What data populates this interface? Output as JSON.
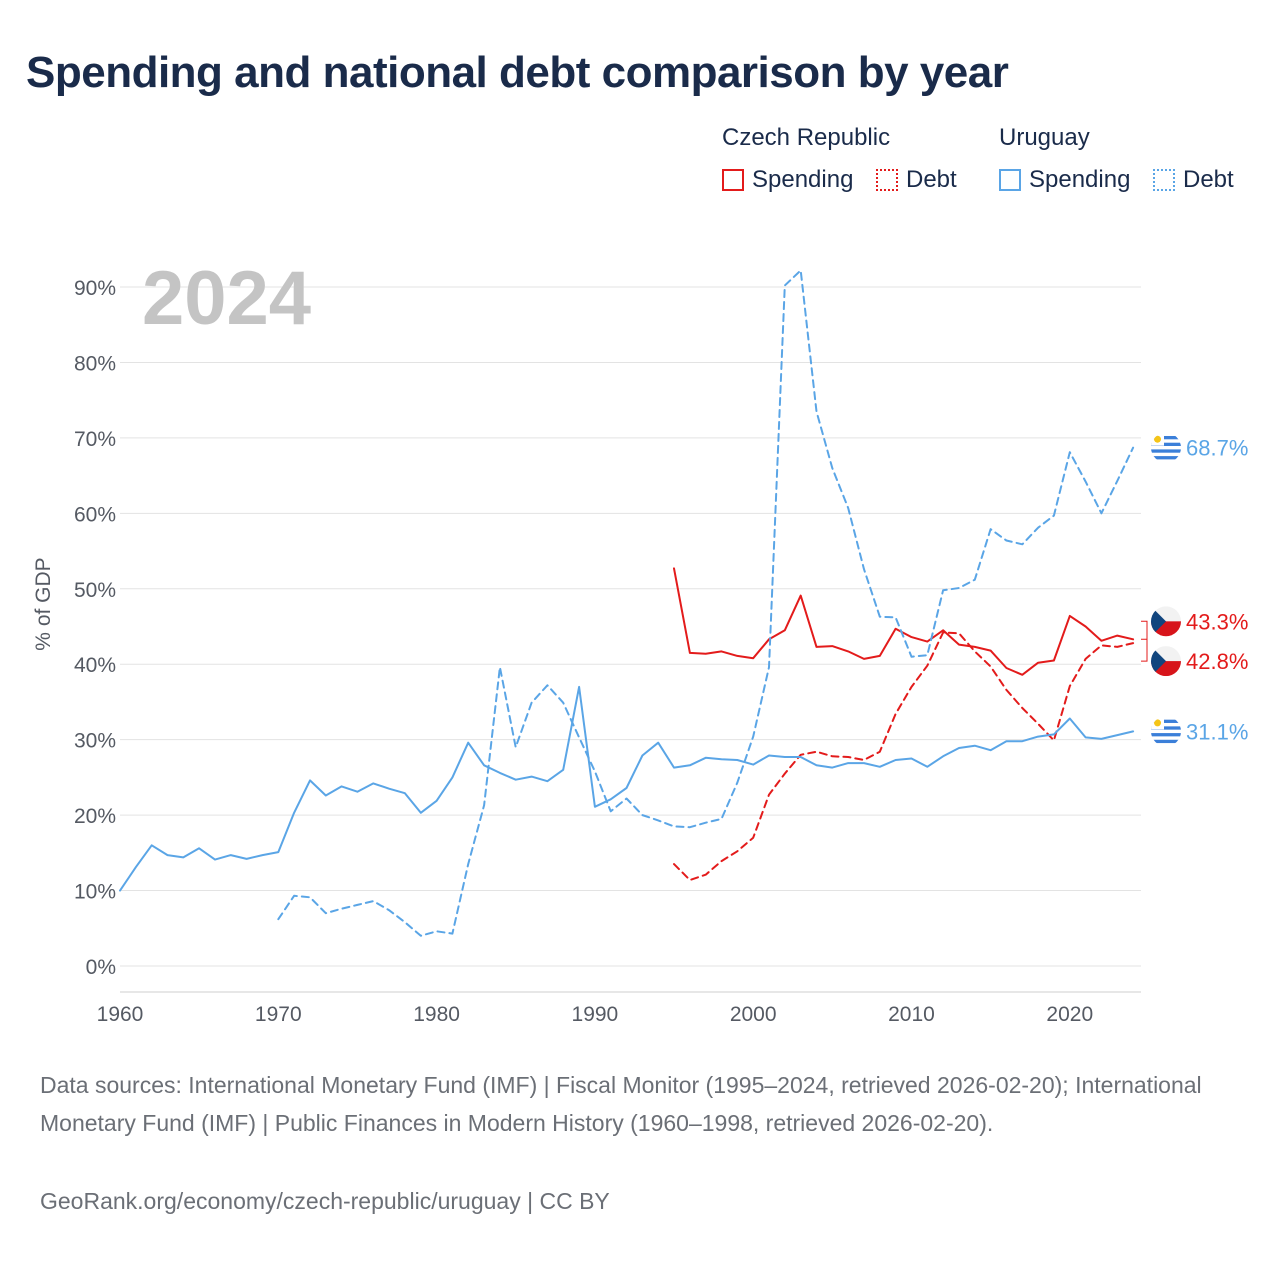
{
  "title": "Spending and national debt comparison by year",
  "legend": {
    "groups": [
      {
        "country": "Czech Republic",
        "color": "#e31b1b",
        "items": [
          {
            "label": "Spending",
            "style": "solid"
          },
          {
            "label": "Debt",
            "style": "dotted"
          }
        ]
      },
      {
        "country": "Uruguay",
        "color": "#5aa5e6",
        "items": [
          {
            "label": "Spending",
            "style": "solid"
          },
          {
            "label": "Debt",
            "style": "dotted"
          }
        ]
      }
    ]
  },
  "footer": {
    "sources": "Data sources: International Monetary Fund (IMF) | Fiscal Monitor (1995–2024, retrieved 2026-02-20); International Monetary Fund (IMF) | Public Finances in Modern History (1960–1998, retrieved 2026-02-20).",
    "attribution": "GeoRank.org/economy/czech-republic/uruguay | CC BY"
  },
  "chart_data": {
    "type": "line",
    "year_label": "2024",
    "ylabel": "% of GDP",
    "xlim": [
      1960,
      2024.5
    ],
    "ylim": [
      0,
      90
    ],
    "x_ticks": [
      1960,
      1970,
      1980,
      1990,
      2000,
      2010,
      2020
    ],
    "y_ticks": [
      0,
      10,
      20,
      30,
      40,
      50,
      60,
      70,
      80,
      90
    ],
    "y_tick_labels": [
      "0%",
      "10%",
      "20%",
      "30%",
      "40%",
      "50%",
      "60%",
      "70%",
      "80%",
      "90%"
    ],
    "grid": true,
    "series": [
      {
        "name": "Czech Republic Spending",
        "country": "Czech Republic",
        "measure": "Spending",
        "color": "#e31b1b",
        "dash": "solid",
        "end_label": "43.3%",
        "x": [
          1995,
          1996,
          1997,
          1998,
          1999,
          2000,
          2001,
          2002,
          2003,
          2004,
          2005,
          2006,
          2007,
          2008,
          2009,
          2010,
          2011,
          2012,
          2013,
          2014,
          2015,
          2016,
          2017,
          2018,
          2019,
          2020,
          2021,
          2022,
          2023,
          2024
        ],
        "values": [
          52.7,
          41.5,
          41.4,
          41.7,
          41.1,
          40.8,
          43.3,
          44.5,
          49.1,
          42.3,
          42.4,
          41.7,
          40.7,
          41.1,
          44.7,
          43.6,
          43.0,
          44.5,
          42.6,
          42.3,
          41.8,
          39.5,
          38.6,
          40.2,
          40.5,
          46.4,
          45.0,
          43.1,
          43.8,
          43.3
        ]
      },
      {
        "name": "Czech Republic Debt",
        "country": "Czech Republic",
        "measure": "Debt",
        "color": "#e31b1b",
        "dash": "dashed",
        "end_label": "42.8%",
        "x": [
          1995,
          1996,
          1997,
          1998,
          1999,
          2000,
          2001,
          2002,
          2003,
          2004,
          2005,
          2006,
          2007,
          2008,
          2009,
          2010,
          2011,
          2012,
          2013,
          2014,
          2015,
          2016,
          2017,
          2018,
          2019,
          2020,
          2021,
          2022,
          2023,
          2024
        ],
        "values": [
          13.5,
          11.4,
          12.1,
          13.9,
          15.2,
          17.0,
          22.7,
          25.5,
          28.0,
          28.4,
          27.8,
          27.7,
          27.3,
          28.4,
          33.4,
          37.0,
          39.8,
          44.2,
          44.1,
          41.7,
          39.7,
          36.6,
          34.2,
          32.1,
          29.9,
          37.1,
          40.7,
          42.5,
          42.3,
          42.8
        ]
      },
      {
        "name": "Uruguay Spending",
        "country": "Uruguay",
        "measure": "Spending",
        "color": "#5aa5e6",
        "dash": "solid",
        "end_label": "31.1%",
        "x": [
          1960,
          1961,
          1962,
          1963,
          1964,
          1965,
          1966,
          1967,
          1968,
          1969,
          1970,
          1971,
          1972,
          1973,
          1974,
          1975,
          1976,
          1977,
          1978,
          1979,
          1980,
          1981,
          1982,
          1983,
          1984,
          1985,
          1986,
          1987,
          1988,
          1989,
          1990,
          1991,
          1992,
          1993,
          1994,
          1995,
          1996,
          1997,
          1998,
          1999,
          2000,
          2001,
          2002,
          2003,
          2004,
          2005,
          2006,
          2007,
          2008,
          2009,
          2010,
          2011,
          2012,
          2013,
          2014,
          2015,
          2016,
          2017,
          2018,
          2019,
          2020,
          2021,
          2022,
          2023,
          2024
        ],
        "values": [
          10.0,
          13.1,
          16.0,
          14.7,
          14.4,
          15.6,
          14.1,
          14.7,
          14.2,
          14.7,
          15.1,
          20.3,
          24.6,
          22.6,
          23.8,
          23.1,
          24.2,
          23.5,
          22.9,
          20.3,
          21.9,
          25.0,
          29.6,
          26.6,
          25.6,
          24.7,
          25.1,
          24.5,
          26.0,
          37.0,
          21.1,
          22.1,
          23.6,
          27.9,
          29.6,
          26.3,
          26.6,
          27.6,
          27.4,
          27.3,
          26.7,
          27.9,
          27.7,
          27.7,
          26.6,
          26.3,
          26.9,
          26.9,
          26.4,
          27.3,
          27.5,
          26.4,
          27.8,
          28.9,
          29.2,
          28.6,
          29.8,
          29.8,
          30.4,
          30.7,
          32.8,
          30.3,
          30.1,
          30.6,
          31.1
        ]
      },
      {
        "name": "Uruguay Debt",
        "country": "Uruguay",
        "measure": "Debt",
        "color": "#5aa5e6",
        "dash": "dashed",
        "end_label": "68.7%",
        "x": [
          1970,
          1971,
          1972,
          1973,
          1974,
          1975,
          1976,
          1977,
          1978,
          1979,
          1980,
          1981,
          1982,
          1983,
          1984,
          1985,
          1986,
          1987,
          1988,
          1989,
          1990,
          1991,
          1992,
          1993,
          1994,
          1995,
          1996,
          1997,
          1998,
          1999,
          2000,
          2001,
          2002,
          2003,
          2004,
          2005,
          2006,
          2007,
          2008,
          2009,
          2010,
          2011,
          2012,
          2013,
          2014,
          2015,
          2016,
          2017,
          2018,
          2019,
          2020,
          2021,
          2022,
          2023,
          2024
        ],
        "values": [
          6.2,
          9.3,
          9.1,
          7.0,
          7.6,
          8.1,
          8.6,
          7.4,
          5.8,
          4.0,
          4.6,
          4.3,
          13.5,
          21.3,
          39.6,
          29.0,
          34.9,
          37.2,
          34.9,
          30.3,
          25.8,
          20.5,
          22.2,
          20.0,
          19.3,
          18.5,
          18.4,
          19.0,
          19.5,
          24.3,
          30.4,
          39.6,
          90.2,
          92.2,
          73.5,
          66.0,
          60.7,
          52.6,
          46.3,
          46.2,
          41.0,
          41.2,
          49.8,
          50.1,
          51.2,
          57.9,
          56.4,
          55.9,
          58.1,
          59.7,
          68.1,
          64.2,
          60.0,
          64.3,
          68.7
        ]
      }
    ]
  }
}
